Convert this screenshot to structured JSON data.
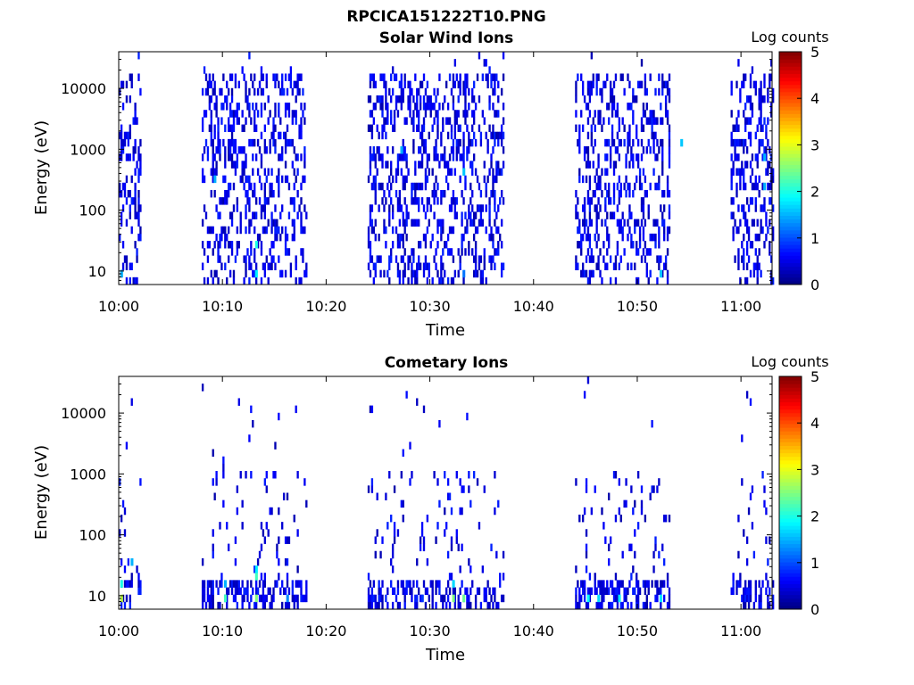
{
  "figure_title": "RPCICA151222T10.PNG",
  "chart_data": [
    {
      "type": "heatmap",
      "title": "Solar Wind Ions",
      "xlabel": "Time",
      "ylabel": "Energy (eV)",
      "x_range": [
        "10:00",
        "11:03"
      ],
      "x_ticks": [
        "10:00",
        "10:10",
        "10:20",
        "10:30",
        "10:40",
        "10:50",
        "11:00"
      ],
      "y_scale": "log",
      "y_range_ev": [
        6,
        40000
      ],
      "y_ticks": [
        "10",
        "100",
        "1000",
        "10000"
      ],
      "colorbar": {
        "label": "Log counts",
        "min": 0,
        "max": 5,
        "ticks": [
          "0",
          "1",
          "2",
          "3",
          "4",
          "5"
        ],
        "colormap": "jet"
      },
      "data_intervals": [
        {
          "start": "10:00",
          "end": "10:02"
        },
        {
          "start": "10:08",
          "end": "10:18"
        },
        {
          "start": "10:24",
          "end": "10:37"
        },
        {
          "start": "10:44",
          "end": "10:53"
        },
        {
          "start": "10:59",
          "end": "11:03"
        }
      ],
      "features": [
        {
          "time": "10:00",
          "energy_ev": 10,
          "log_counts": 1.5
        },
        {
          "time": "10:09",
          "energy_ev": 350,
          "log_counts": 1.5
        },
        {
          "time": "10:13",
          "energy_ev": 25,
          "log_counts": 2.0
        },
        {
          "time": "10:13",
          "energy_ev": 10,
          "log_counts": 1.8
        },
        {
          "time": "10:27",
          "energy_ev": 900,
          "log_counts": 1.5
        },
        {
          "time": "10:33",
          "energy_ev": 400,
          "log_counts": 1.6
        },
        {
          "time": "10:33",
          "energy_ev": 10,
          "log_counts": 1.2
        },
        {
          "time": "10:52",
          "energy_ev": 10,
          "log_counts": 1.6
        },
        {
          "time": "10:54",
          "energy_ev": 1200,
          "log_counts": 1.6
        },
        {
          "time": "11:02",
          "energy_ev": 700,
          "log_counts": 1.5
        },
        {
          "time": "11:02",
          "energy_ev": 250,
          "log_counts": 1.5
        }
      ]
    },
    {
      "type": "heatmap",
      "title": "Cometary Ions",
      "xlabel": "Time",
      "ylabel": "Energy (eV)",
      "x_range": [
        "10:00",
        "11:03"
      ],
      "x_ticks": [
        "10:00",
        "10:10",
        "10:20",
        "10:30",
        "10:40",
        "10:50",
        "11:00"
      ],
      "y_scale": "log",
      "y_range_ev": [
        6,
        40000
      ],
      "y_ticks": [
        "10",
        "100",
        "1000",
        "10000"
      ],
      "colorbar": {
        "label": "Log counts",
        "min": 0,
        "max": 5,
        "ticks": [
          "0",
          "1",
          "2",
          "3",
          "4",
          "5"
        ],
        "colormap": "jet"
      },
      "data_intervals": [
        {
          "start": "10:00",
          "end": "10:02"
        },
        {
          "start": "10:08",
          "end": "10:18"
        },
        {
          "start": "10:24",
          "end": "10:37"
        },
        {
          "start": "10:44",
          "end": "10:53"
        },
        {
          "start": "10:59",
          "end": "11:03"
        }
      ],
      "features": [
        {
          "time": "10:00",
          "energy_ev": 10,
          "log_counts": 2.8
        },
        {
          "time": "10:00",
          "energy_ev": 14,
          "log_counts": 2.0
        },
        {
          "time": "10:01",
          "energy_ev": 35,
          "log_counts": 1.5
        },
        {
          "time": "10:10",
          "energy_ev": 10,
          "log_counts": 2.2
        },
        {
          "time": "10:10",
          "energy_ev": 14,
          "log_counts": 1.5
        },
        {
          "time": "10:13",
          "energy_ev": 10,
          "log_counts": 2.5
        },
        {
          "time": "10:13",
          "energy_ev": 20,
          "log_counts": 2.2
        },
        {
          "time": "10:13",
          "energy_ev": 30,
          "log_counts": 1.8
        },
        {
          "time": "10:16",
          "energy_ev": 10,
          "log_counts": 1.3
        },
        {
          "time": "10:29",
          "energy_ev": 10,
          "log_counts": 0.9
        },
        {
          "time": "10:32",
          "energy_ev": 10,
          "log_counts": 2.5
        },
        {
          "time": "10:32",
          "energy_ev": 14,
          "log_counts": 1.7
        },
        {
          "time": "10:33",
          "energy_ev": 10,
          "log_counts": 2.4
        },
        {
          "time": "10:45",
          "energy_ev": 10,
          "log_counts": 1.9
        },
        {
          "time": "10:46",
          "energy_ev": 10,
          "log_counts": 1.7
        },
        {
          "time": "10:48",
          "energy_ev": 10,
          "log_counts": 1.8
        },
        {
          "time": "10:52",
          "energy_ev": 10,
          "log_counts": 1.8
        }
      ]
    }
  ]
}
